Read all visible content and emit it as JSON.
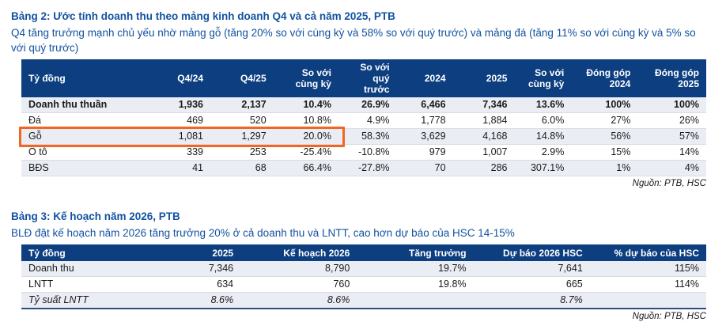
{
  "colors": {
    "header_navy": "#0c3e80",
    "title_blue": "#1252a0",
    "stripe": "#eaeef4",
    "highlight_orange": "#f4651f"
  },
  "table2": {
    "title": "Bảng 2: Ước tính doanh thu theo mảng kinh doanh Q4 và cả năm 2025, PTB",
    "subtitle": "Q4 tăng trưởng mạnh chủ yếu nhờ mảng gỗ (tăng 20% so với cùng kỳ và 58% so với quý trước) và mảng đá (tăng 11% so với cùng kỳ và 5% so với quý trước)",
    "unit_header": "Tỷ đồng",
    "columns": [
      "Q4/24",
      "Q4/25",
      "So với cùng kỳ",
      "So với quý trước",
      "2024",
      "2025",
      "So với cùng kỳ",
      "Đóng góp 2024",
      "Đóng góp 2025"
    ],
    "rows": [
      {
        "label": "Doanh thu thuần",
        "values": [
          "1,936",
          "2,137",
          "10.4%",
          "26.9%",
          "6,466",
          "7,346",
          "13.6%",
          "100%",
          "100%"
        ],
        "style": "bold",
        "highlighted": false
      },
      {
        "label": "Đá",
        "values": [
          "469",
          "520",
          "10.8%",
          "4.9%",
          "1,778",
          "1,884",
          "6.0%",
          "27%",
          "26%"
        ],
        "style": null,
        "highlighted": false
      },
      {
        "label": "Gỗ",
        "values": [
          "1,081",
          "1,297",
          "20.0%",
          "58.3%",
          "3,629",
          "4,168",
          "14.8%",
          "56%",
          "57%"
        ],
        "style": null,
        "highlighted": true
      },
      {
        "label": "Ô tô",
        "values": [
          "339",
          "253",
          "-25.4%",
          "-10.8%",
          "979",
          "1,007",
          "2.9%",
          "15%",
          "14%"
        ],
        "style": null,
        "highlighted": false
      },
      {
        "label": "BĐS",
        "values": [
          "41",
          "68",
          "66.4%",
          "-27.8%",
          "70",
          "286",
          "307.1%",
          "1%",
          "4%"
        ],
        "style": null,
        "highlighted": false
      }
    ],
    "source": "Nguồn: PTB, HSC"
  },
  "table3": {
    "title": "Bảng 3: Kế hoạch năm 2026, PTB",
    "subtitle": "BLĐ đặt kế hoạch năm 2026 tăng trưởng 20% ở cả doanh thu và LNTT, cao hơn dự báo của HSC 14-15%",
    "unit_header": "Tỷ đồng",
    "columns": [
      "2025",
      "Kế hoạch 2026",
      "Tăng trưởng",
      "Dự báo 2026 HSC",
      "% dự báo của HSC"
    ],
    "rows": [
      {
        "label": "Doanh thu",
        "values": [
          "7,346",
          "8,790",
          "19.7%",
          "7,641",
          "115%"
        ],
        "style": null,
        "highlighted": false
      },
      {
        "label": "LNTT",
        "values": [
          "634",
          "760",
          "19.8%",
          "665",
          "114%"
        ],
        "style": null,
        "highlighted": false
      },
      {
        "label": "Tỷ suất LNTT",
        "values": [
          "8.6%",
          "8.6%",
          "",
          "8.7%",
          ""
        ],
        "style": "italic",
        "highlighted": false
      }
    ],
    "source": "Nguồn: PTB, HSC"
  }
}
